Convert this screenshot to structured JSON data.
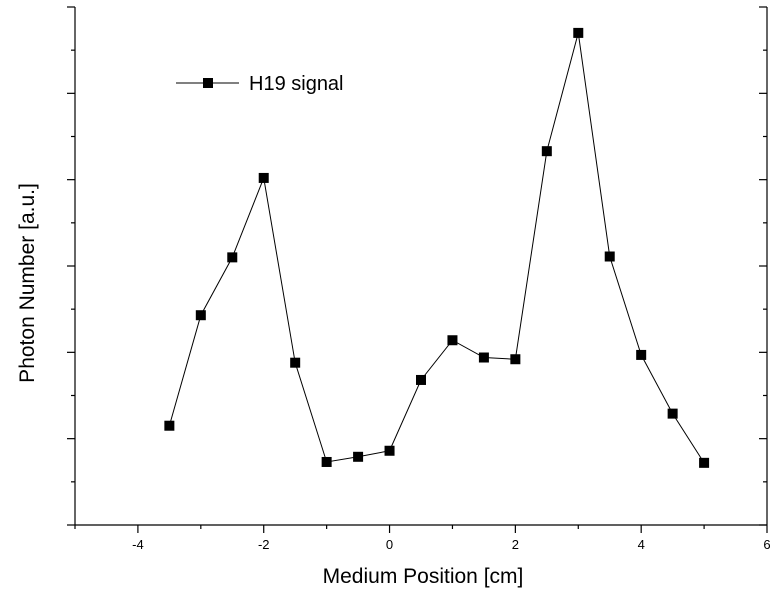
{
  "chart_data": {
    "type": "line",
    "title": "",
    "xlabel": "Medium Position [cm]",
    "ylabel": "Photon Number [a.u.]",
    "xlim": [
      -5,
      6
    ],
    "ylim": [
      0,
      6
    ],
    "x_ticks": [
      -4,
      -2,
      0,
      2,
      4,
      6
    ],
    "x_tick_labels": [
      "-4",
      "-2",
      "0",
      "2",
      "4",
      "6"
    ],
    "y_tick_labels_shown": false,
    "grid": false,
    "legend_position": "top-left",
    "series": [
      {
        "name": "H19 signal",
        "marker": "square",
        "color": "#000000",
        "x": [
          -3.5,
          -3.0,
          -2.5,
          -2.0,
          -1.5,
          -1.0,
          -0.5,
          0.0,
          0.5,
          1.0,
          1.5,
          2.0,
          2.5,
          3.0,
          3.5,
          4.0,
          4.5,
          5.0
        ],
        "y": [
          1.15,
          2.43,
          3.1,
          4.02,
          1.88,
          0.73,
          0.79,
          0.86,
          1.68,
          2.14,
          1.94,
          1.92,
          4.33,
          5.7,
          3.11,
          1.97,
          1.29,
          0.72
        ]
      }
    ]
  }
}
